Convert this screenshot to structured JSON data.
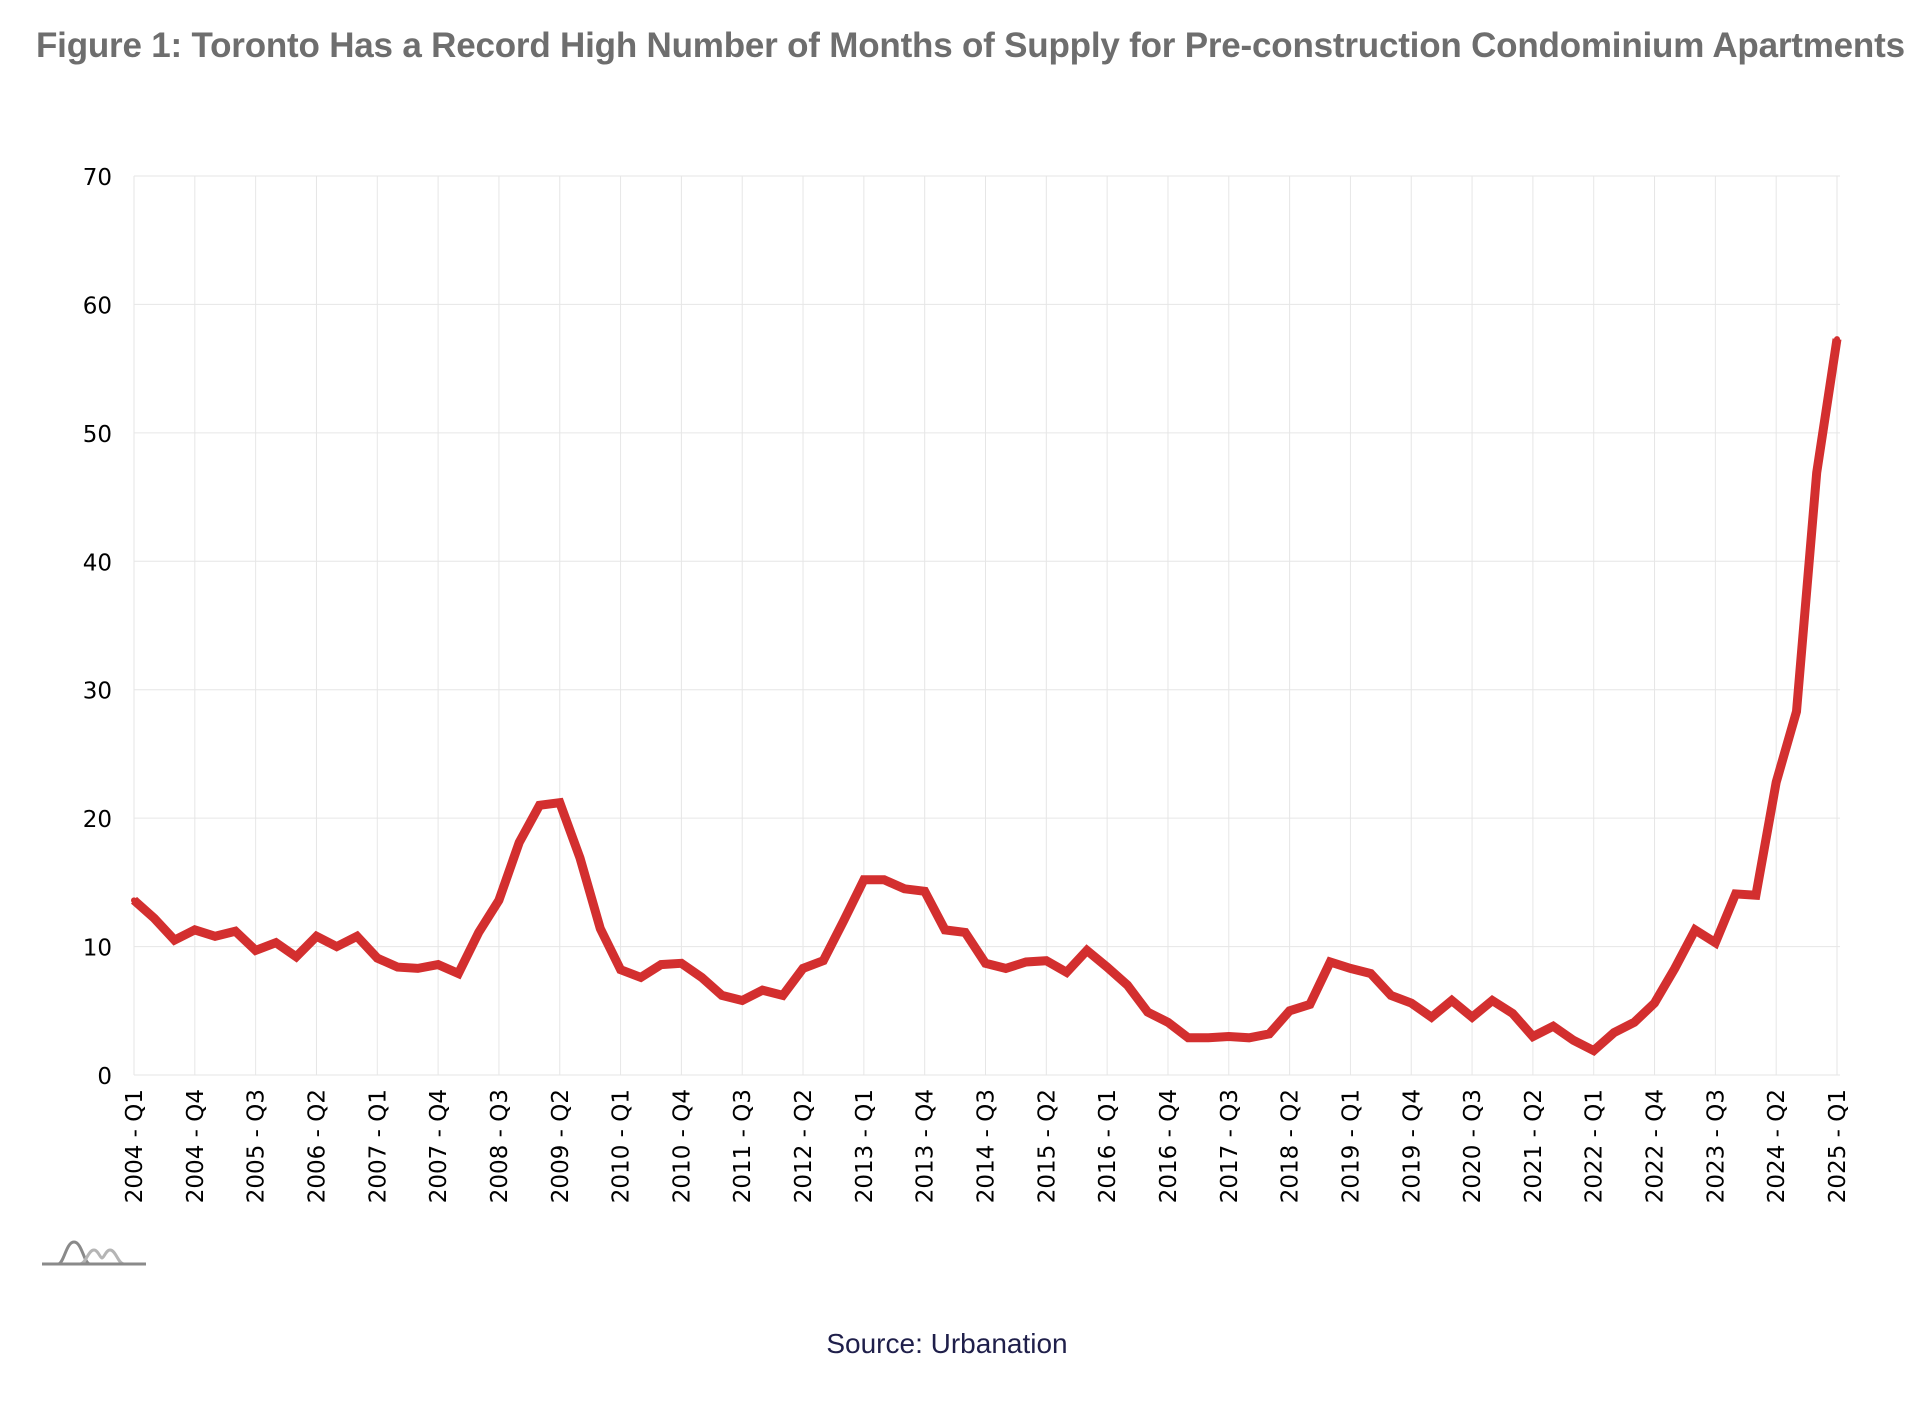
{
  "figure": {
    "title": "Figure 1: Toronto Has a Record High Number of Months of Supply for Pre-construction Condominium Apartments",
    "source": "Source: Urbanation"
  },
  "logo": {
    "icon": "mountain-wave-logo-icon"
  },
  "colors": {
    "line": "#d32f2f",
    "grid": "#e6e6e6",
    "axis_text": "#000000",
    "title": "#6e6e6e",
    "source": "#1f1f4a"
  },
  "chart_data": {
    "type": "line",
    "title": "Figure 1: Toronto Has a Record High Number of Months of Supply for Pre-construction Condominium Apartments",
    "xlabel": "",
    "ylabel": "",
    "ylim": [
      0,
      70
    ],
    "yticks": [
      0,
      10,
      20,
      30,
      40,
      50,
      60,
      70
    ],
    "grid": true,
    "legend": "none",
    "x_start": "2004 - Q1",
    "x_tick_labels": [
      "2004 - Q1",
      "2004 - Q4",
      "2005 - Q3",
      "2006 - Q2",
      "2007 - Q1",
      "2007 - Q4",
      "2008 - Q3",
      "2009 - Q2",
      "2010 - Q1",
      "2010 - Q4",
      "2011 - Q3",
      "2012 - Q2",
      "2013 - Q1",
      "2013 - Q4",
      "2014 - Q3",
      "2015 - Q2",
      "2016 - Q1",
      "2016 - Q4",
      "2017 - Q3",
      "2018 - Q2",
      "2019 - Q1",
      "2019 - Q4",
      "2020 - Q3",
      "2021 - Q2",
      "2022 - Q1",
      "2022 - Q4",
      "2023 - Q3",
      "2024 - Q2",
      "2025 - Q1"
    ],
    "x": [
      "2004 - Q1",
      "2004 - Q2",
      "2004 - Q3",
      "2004 - Q4",
      "2005 - Q1",
      "2005 - Q2",
      "2005 - Q3",
      "2005 - Q4",
      "2006 - Q1",
      "2006 - Q2",
      "2006 - Q3",
      "2006 - Q4",
      "2007 - Q1",
      "2007 - Q2",
      "2007 - Q3",
      "2007 - Q4",
      "2008 - Q1",
      "2008 - Q2",
      "2008 - Q3",
      "2008 - Q4",
      "2009 - Q1",
      "2009 - Q2",
      "2009 - Q3",
      "2009 - Q4",
      "2010 - Q1",
      "2010 - Q2",
      "2010 - Q3",
      "2010 - Q4",
      "2011 - Q1",
      "2011 - Q2",
      "2011 - Q3",
      "2011 - Q4",
      "2012 - Q1",
      "2012 - Q2",
      "2012 - Q3",
      "2012 - Q4",
      "2013 - Q1",
      "2013 - Q2",
      "2013 - Q3",
      "2013 - Q4",
      "2014 - Q1",
      "2014 - Q2",
      "2014 - Q3",
      "2014 - Q4",
      "2015 - Q1",
      "2015 - Q2",
      "2015 - Q3",
      "2015 - Q4",
      "2016 - Q1",
      "2016 - Q2",
      "2016 - Q3",
      "2016 - Q4",
      "2017 - Q1",
      "2017 - Q2",
      "2017 - Q3",
      "2017 - Q4",
      "2018 - Q1",
      "2018 - Q2",
      "2018 - Q3",
      "2018 - Q4",
      "2019 - Q1",
      "2019 - Q2",
      "2019 - Q3",
      "2019 - Q4",
      "2020 - Q1",
      "2020 - Q2",
      "2020 - Q3",
      "2020 - Q4",
      "2021 - Q1",
      "2021 - Q2",
      "2021 - Q3",
      "2021 - Q4",
      "2022 - Q1",
      "2022 - Q2",
      "2022 - Q3",
      "2022 - Q4",
      "2023 - Q1",
      "2023 - Q2",
      "2023 - Q3",
      "2023 - Q4",
      "2024 - Q1",
      "2024 - Q2",
      "2024 - Q3",
      "2024 - Q4",
      "2025 - Q1"
    ],
    "series": [
      {
        "values": [
          13.6,
          12.2,
          10.5,
          11.3,
          10.8,
          11.2,
          9.7,
          10.3,
          9.2,
          10.8,
          10.0,
          10.8,
          9.1,
          8.4,
          8.3,
          8.6,
          7.9,
          11.1,
          13.6,
          18.1,
          21.0,
          21.2,
          16.9,
          11.4,
          8.2,
          7.6,
          8.6,
          8.7,
          7.6,
          6.2,
          5.8,
          6.6,
          6.2,
          8.3,
          8.9,
          12.0,
          15.2,
          15.2,
          14.5,
          14.3,
          11.3,
          11.1,
          8.7,
          8.3,
          8.8,
          8.9,
          8.0,
          9.7,
          8.4,
          7.0,
          4.9,
          4.1,
          2.9,
          2.9,
          3.0,
          2.9,
          3.2,
          5.0,
          5.5,
          8.8,
          8.3,
          7.9,
          6.2,
          5.6,
          4.5,
          5.8,
          4.5,
          5.8,
          4.8,
          3.0,
          3.8,
          2.7,
          1.9,
          3.3,
          4.1,
          5.6,
          8.3,
          11.3,
          10.3,
          14.1,
          14.0,
          22.8,
          28.3,
          46.9,
          57.3
        ]
      }
    ]
  }
}
